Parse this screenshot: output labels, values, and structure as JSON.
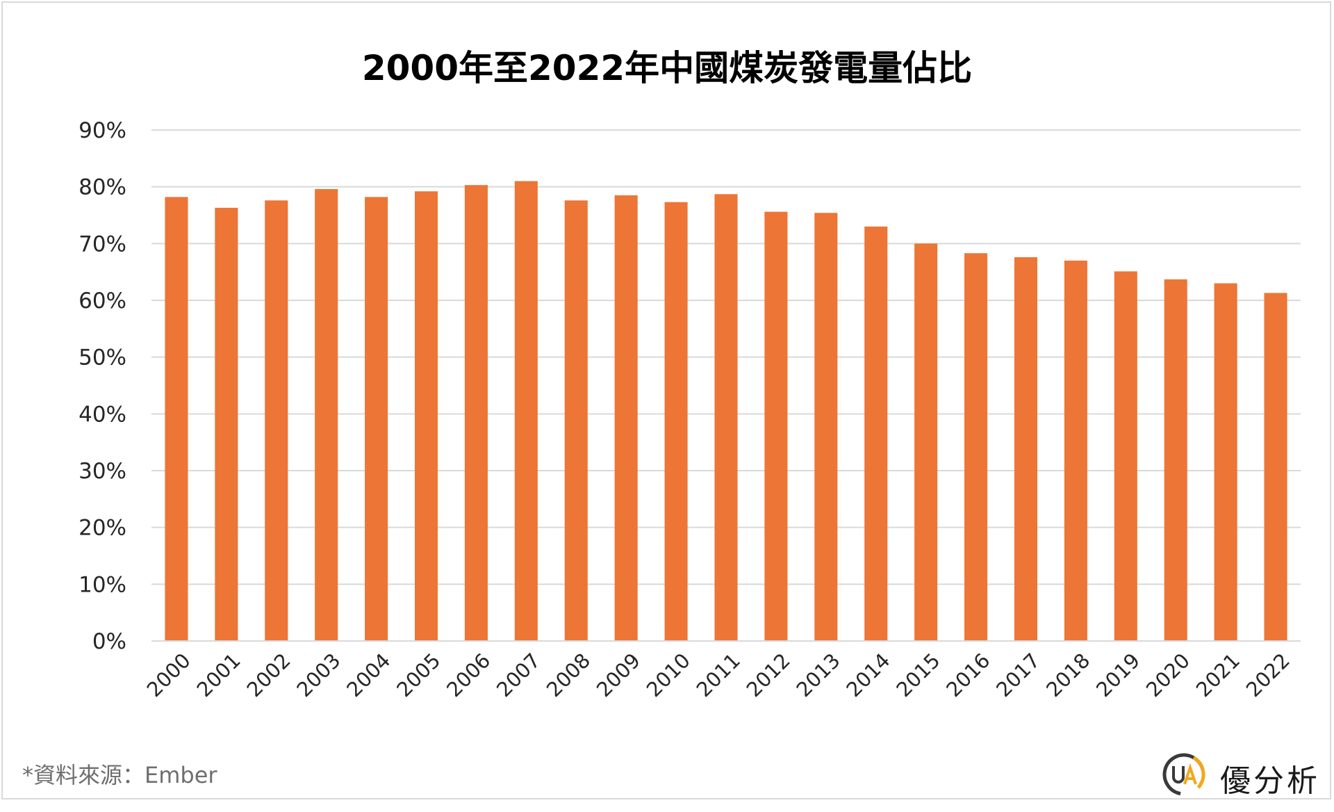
{
  "title": "2000年至2022年中國煤炭發電量佔比",
  "source_note": "*資料來源：Ember",
  "brand": {
    "logo_text": "UA",
    "name": "優分析"
  },
  "colors": {
    "bar": "#ED7536",
    "grid": "#d9d9d9",
    "axis_text": "#262626",
    "logo_accent": "#f2a81d",
    "logo_dark": "#3a3a3a"
  },
  "chart_data": {
    "type": "bar",
    "title": "2000年至2022年中國煤炭發電量佔比",
    "categories": [
      "2000",
      "2001",
      "2002",
      "2003",
      "2004",
      "2005",
      "2006",
      "2007",
      "2008",
      "2009",
      "2010",
      "2011",
      "2012",
      "2013",
      "2014",
      "2015",
      "2016",
      "2017",
      "2018",
      "2019",
      "2020",
      "2021",
      "2022"
    ],
    "values": [
      78.2,
      76.3,
      77.6,
      79.6,
      78.2,
      79.2,
      80.3,
      81.0,
      77.6,
      78.5,
      77.3,
      78.7,
      75.6,
      75.4,
      73.0,
      70.0,
      68.3,
      67.6,
      67.0,
      65.1,
      63.7,
      63.0,
      61.3
    ],
    "ylim": [
      0,
      90
    ],
    "yticks": [
      "0%",
      "10%",
      "20%",
      "30%",
      "40%",
      "50%",
      "60%",
      "70%",
      "80%",
      "90%"
    ],
    "grid": true,
    "xlabel": "",
    "ylabel": ""
  }
}
